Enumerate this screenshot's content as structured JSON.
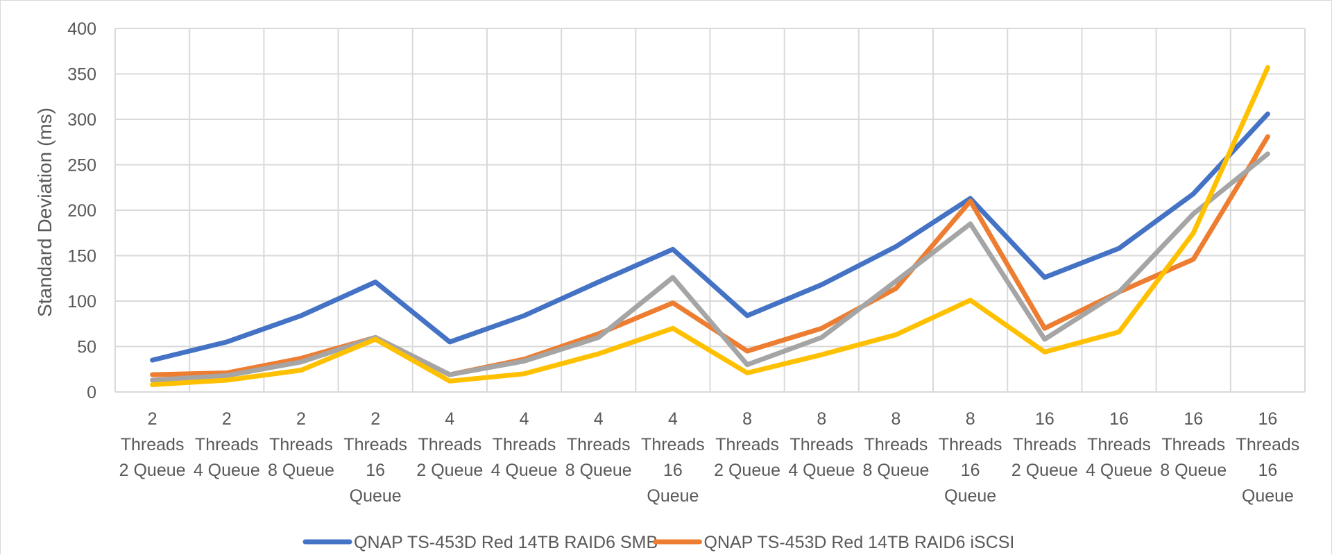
{
  "chart_data": {
    "type": "line",
    "ylabel": "Standard Deviation (ms)",
    "xlabel": "",
    "ylim": [
      0,
      400
    ],
    "yticks": [
      0,
      50,
      100,
      150,
      200,
      250,
      300,
      350,
      400
    ],
    "grid": true,
    "legend_position": "bottom",
    "categories": [
      [
        "2",
        "Threads",
        "2 Queue"
      ],
      [
        "2",
        "Threads",
        "4 Queue"
      ],
      [
        "2",
        "Threads",
        "8 Queue"
      ],
      [
        "2",
        "Threads",
        "16",
        "Queue"
      ],
      [
        "4",
        "Threads",
        "2 Queue"
      ],
      [
        "4",
        "Threads",
        "4 Queue"
      ],
      [
        "4",
        "Threads",
        "8 Queue"
      ],
      [
        "4",
        "Threads",
        "16",
        "Queue"
      ],
      [
        "8",
        "Threads",
        "2 Queue"
      ],
      [
        "8",
        "Threads",
        "4 Queue"
      ],
      [
        "8",
        "Threads",
        "8 Queue"
      ],
      [
        "8",
        "Threads",
        "16",
        "Queue"
      ],
      [
        "16",
        "Threads",
        "2 Queue"
      ],
      [
        "16",
        "Threads",
        "4 Queue"
      ],
      [
        "16",
        "Threads",
        "8 Queue"
      ],
      [
        "16",
        "Threads",
        "16",
        "Queue"
      ]
    ],
    "series": [
      {
        "name": "QNAP TS-453D Red 14TB RAID6 SMB",
        "color": "#4472c4",
        "values": [
          35,
          55,
          84,
          121,
          55,
          84,
          121,
          157,
          84,
          118,
          160,
          213,
          126,
          158,
          218,
          306
        ]
      },
      {
        "name": "QNAP TS-453D Red 14TB RAID6 iSCSI",
        "color": "#ed7d31",
        "values": [
          19,
          21,
          37,
          60,
          19,
          36,
          64,
          98,
          45,
          70,
          114,
          210,
          70,
          110,
          146,
          281
        ]
      },
      {
        "color": "#a5a5a5",
        "values": [
          13,
          18,
          33,
          60,
          19,
          34,
          60,
          126,
          30,
          60,
          122,
          185,
          58,
          110,
          196,
          262
        ]
      },
      {
        "color": "#ffc000",
        "values": [
          8,
          13,
          24,
          58,
          12,
          20,
          42,
          70,
          21,
          41,
          63,
          101,
          44,
          66,
          175,
          357
        ]
      }
    ]
  }
}
